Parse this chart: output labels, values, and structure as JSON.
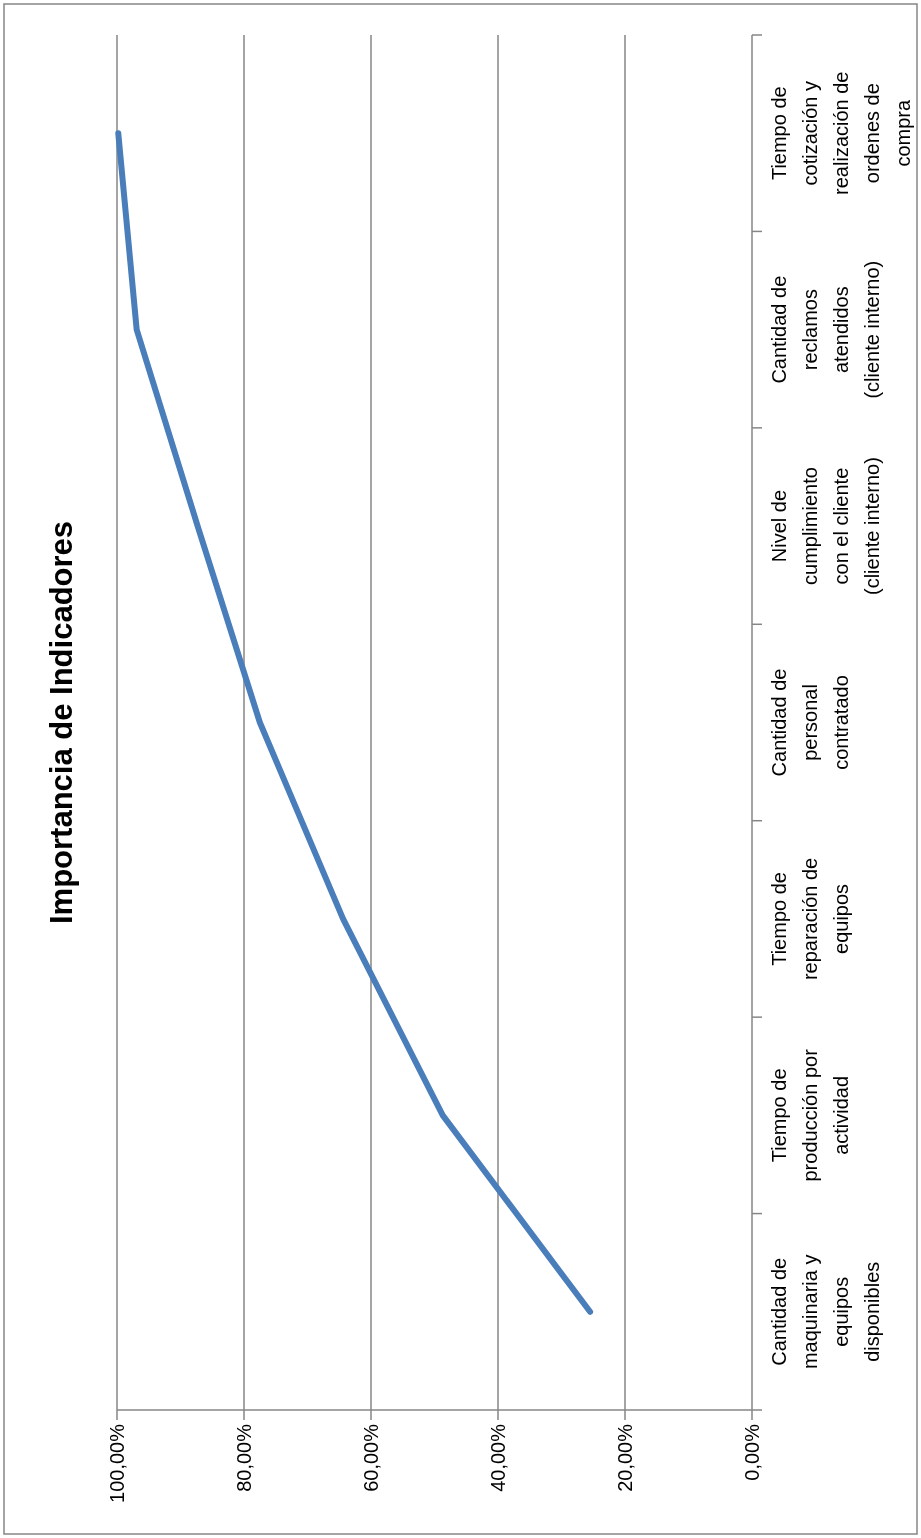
{
  "chart_data": {
    "type": "line",
    "title": "Importancia de Indicadores",
    "orientation": "horizontal",
    "categories": [
      "Tiempo de cotización y realización de ordenes de compra",
      "Cantidad de reclamos atendidos (cliente interno)",
      "Nivel de cumplimiento con el cliente (cliente interno)",
      "Cantidad de personal contratado",
      "Tiempo de reparación de equipos",
      "Tiempo de producción por actividad",
      "Cantidad de maquinaria y equipos disponibles"
    ],
    "series": [
      {
        "color": "#4a7ebb",
        "values": [
          99.8,
          96.9,
          87.3,
          77.5,
          64.4,
          48.7,
          25.5
        ]
      }
    ],
    "xlim": [
      100,
      0
    ],
    "xticks": [
      {
        "value": 100,
        "label": "100,00%"
      },
      {
        "value": 80,
        "label": "80,00%"
      },
      {
        "value": 60,
        "label": "60,00%"
      },
      {
        "value": 40,
        "label": "40,00%"
      },
      {
        "value": 20,
        "label": "20,00%"
      },
      {
        "value": 0,
        "label": "0,00%"
      }
    ],
    "grid": "x"
  }
}
